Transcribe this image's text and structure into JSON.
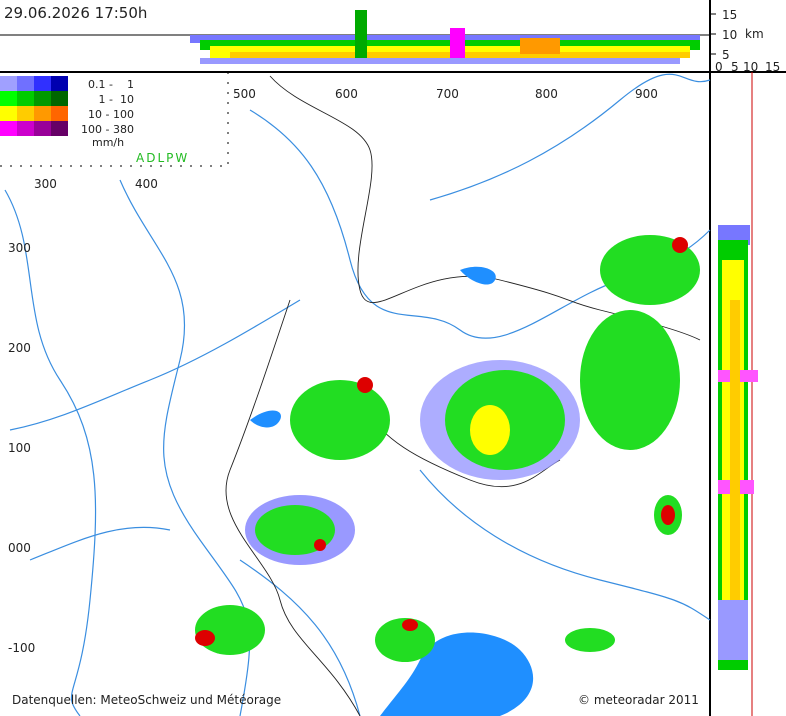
{
  "header": {
    "timestamp": "29.06.2026 17:50h"
  },
  "profile_axis": {
    "height_ticks": [
      "15",
      "10",
      "5"
    ],
    "height_unit": "km",
    "width_ticks": [
      "0",
      "5",
      "10",
      "15"
    ]
  },
  "legend": {
    "entries": [
      "0.1 -    1",
      "1 -  10",
      "10 - 100",
      "100 - 380"
    ],
    "unit": "mm/h",
    "stations": "ADLPW"
  },
  "map_axis": {
    "top_ticks": [
      "500",
      "600",
      "700",
      "800",
      "900"
    ],
    "inner_ticks": [
      "300",
      "400"
    ],
    "left_ticks": [
      "300",
      "200",
      "100",
      "000",
      "-100"
    ]
  },
  "footer": {
    "sources": "Datenquellen: MeteoSchweiz und Météorage",
    "copyright": "© meteoradar 2011"
  }
}
